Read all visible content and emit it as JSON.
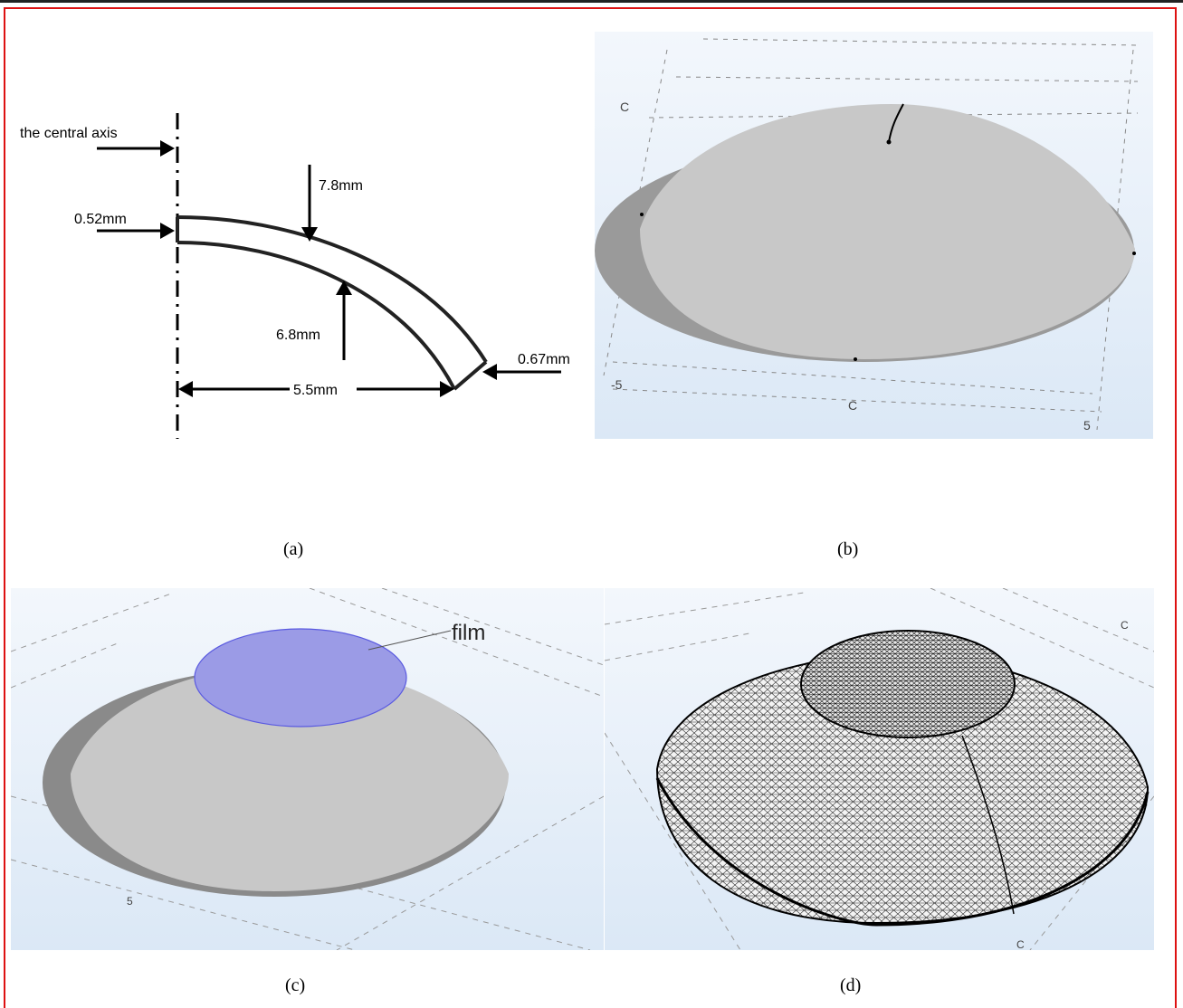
{
  "panel_a": {
    "axis_label": "the central axis",
    "outer_radius": "7.8mm",
    "thickness_top": "0.52mm",
    "inner_radius": "6.8mm",
    "thickness_edge": "0.67mm",
    "width": "5.5mm"
  },
  "panel_b": {
    "tick_left_top": "C",
    "tick_left": "-5",
    "tick_mid": "C",
    "tick_right": "5"
  },
  "panel_c": {
    "film_label": "film",
    "tick_bottom_left": "5"
  },
  "panel_d": {
    "tick_top_right": "C",
    "tick_bottom": "C"
  },
  "captions": {
    "a": "(a)",
    "b": "(b)",
    "c": "(c)",
    "d": "(d)"
  },
  "colors": {
    "frame": "#dd1111",
    "lens_gray": "#c8c8c8",
    "film_blue": "#9b9be6",
    "viewport_bg_top": "#f3f7fc",
    "viewport_bg_bottom": "#dbe8f6"
  }
}
